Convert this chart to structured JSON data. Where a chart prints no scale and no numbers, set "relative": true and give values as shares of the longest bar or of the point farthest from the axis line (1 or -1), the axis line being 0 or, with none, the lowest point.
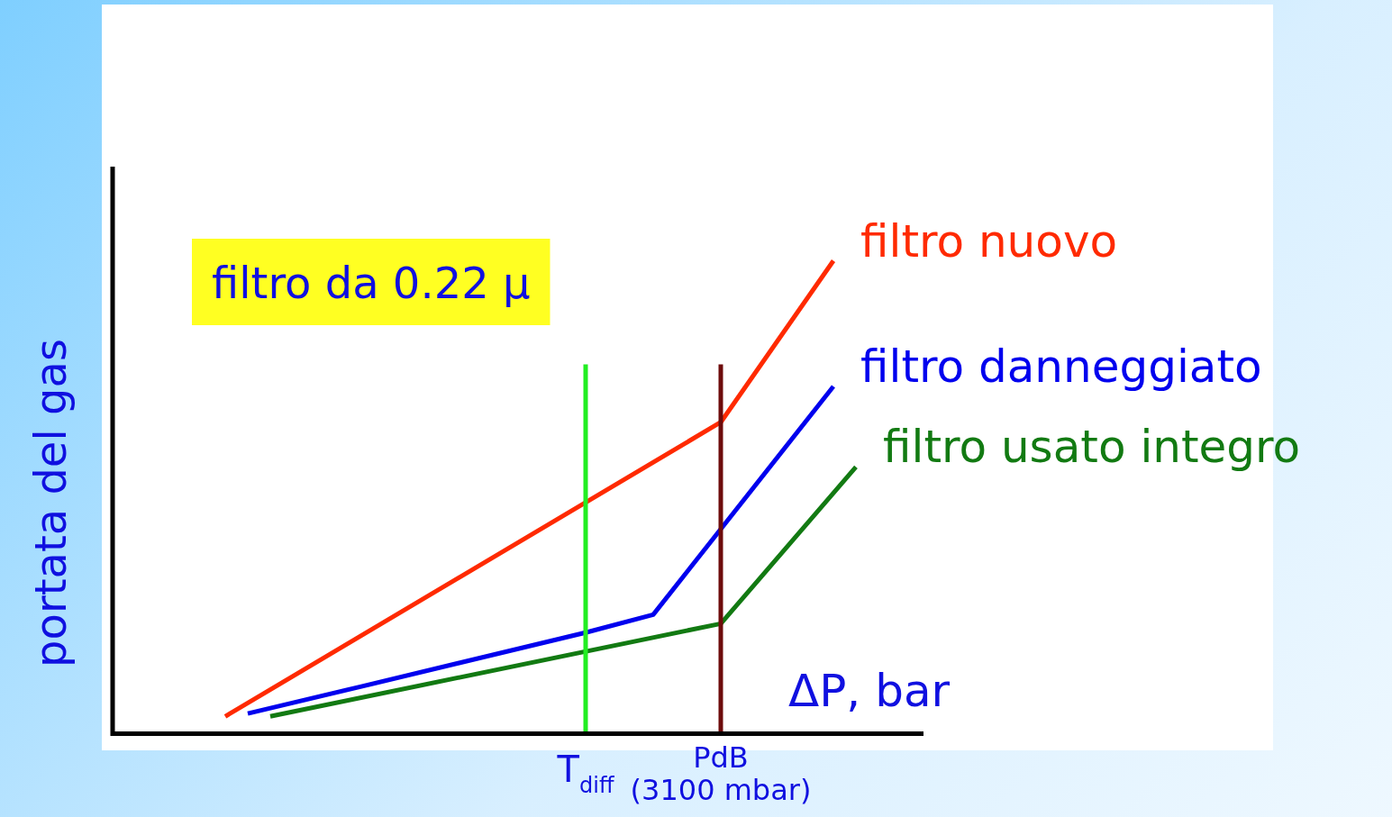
{
  "chart_data": {
    "type": "line",
    "relative": true,
    "ylabel": "portata del gas",
    "xlabel": "ΔP, bar",
    "legend": false,
    "marker": "none",
    "line_style": "solid",
    "annotations": [
      "filtro da 0.22 μ"
    ],
    "categories": [
      null,
      null,
      null,
      null,
      null,
      null,
      null,
      null,
      null,
      null,
      null,
      null,
      null,
      null,
      null,
      null,
      null,
      null,
      null,
      null,
      null,
      "T$_{diff}$",
      null,
      null,
      null,
      null,
      null,
      "PdB (3100 mbar)",
      null,
      null,
      null,
      null,
      null,
      null,
      null,
      null,
      null
    ],
    "series": [
      {
        "name": "filtro nuovo",
        "color": "#ff2a00",
        "values": [
          null,
          null,
          null,
          null,
          null,
          0.032,
          null,
          null,
          null,
          null,
          null,
          null,
          null,
          null,
          null,
          null,
          null,
          null,
          null,
          null,
          null,
          null,
          null,
          null,
          null,
          null,
          null,
          0.657,
          null,
          null,
          null,
          null,
          1,
          null,
          null,
          null,
          null
        ]
      },
      {
        "name": "filtro danneggiato",
        "color": "#0000ee",
        "values": [
          null,
          null,
          null,
          null,
          null,
          null,
          0.038,
          null,
          null,
          null,
          null,
          0.095,
          null,
          null,
          null,
          null,
          null,
          null,
          null,
          null,
          null,
          0.21,
          null,
          null,
          0.248,
          null,
          null,
          null,
          null,
          null,
          null,
          null,
          0.733,
          null,
          null,
          null,
          null
        ]
      },
      {
        "name": "filtro usato integro",
        "color": "#127a12",
        "values": [
          null,
          null,
          null,
          null,
          null,
          null,
          null,
          0.032,
          null,
          null,
          null,
          null,
          null,
          null,
          null,
          null,
          null,
          null,
          null,
          null,
          null,
          null,
          null,
          null,
          null,
          null,
          null,
          0.229,
          null,
          null,
          null,
          null,
          null,
          0.562,
          null,
          null,
          null
        ]
      }
    ],
    "ref_lines": [
      {
        "axis": "x",
        "value": "T$_{diff}$",
        "color": "#22ee22"
      },
      {
        "axis": "x",
        "value": "PdB (3100 mbar)",
        "color": "#6e0c0c"
      }
    ]
  }
}
